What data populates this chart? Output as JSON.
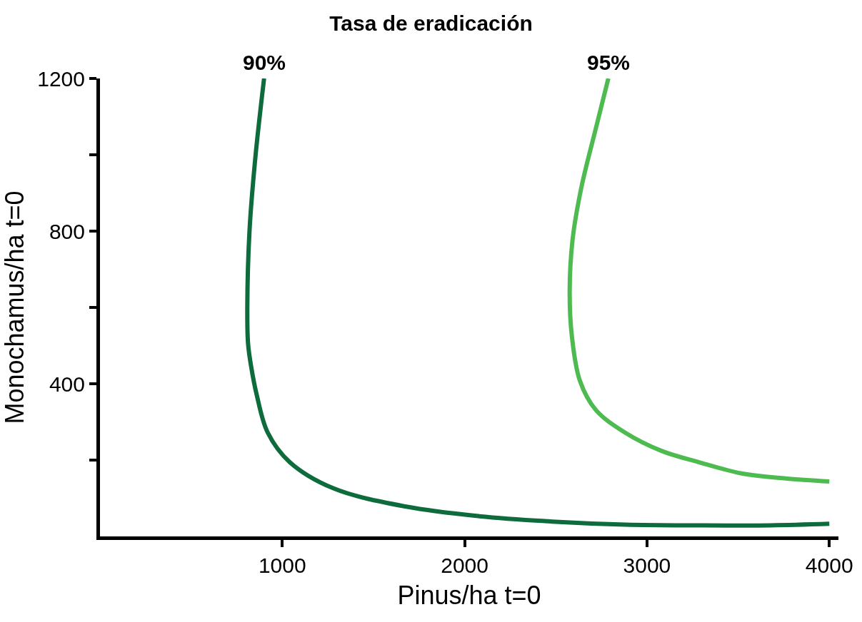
{
  "chart_data": {
    "type": "line",
    "title": "Tasa de eradicación",
    "xlabel": "Pinus/ha t=0",
    "ylabel": "Monochamus/ha t=0",
    "xlim": [
      0,
      4050
    ],
    "xticks": [
      1000,
      2000,
      3000,
      4000
    ],
    "ylim": [
      0,
      1200
    ],
    "yticks": [
      {
        "value": 200,
        "label": null
      },
      400,
      {
        "value": 600,
        "label": null
      },
      800,
      {
        "value": 1000,
        "label": null
      },
      1200
    ],
    "legend": false,
    "marker": "none",
    "line_style": "solid",
    "series": [
      {
        "name": "90%",
        "color": "#0e6b3b",
        "x": [
          900,
          852,
          820,
          808,
          812,
          828,
          860,
          920,
          1040,
          1280,
          1680,
          2080,
          2480,
          2880,
          3280,
          3680,
          4000
        ],
        "values": [
          1200,
          992,
          800,
          600,
          506,
          448,
          370,
          272,
          195,
          126,
          78,
          53,
          39,
          31,
          29,
          29,
          33
        ]
      },
      {
        "name": "95%",
        "color": "#4dbb4f",
        "x": [
          2788,
          2720,
          2640,
          2592,
          2576,
          2588,
          2632,
          2720,
          2880,
          3080,
          3280,
          3520,
          3760,
          4000
        ],
        "values": [
          1200,
          1070,
          914,
          778,
          642,
          525,
          408,
          331,
          272,
          224,
          195,
          165,
          152,
          144
        ]
      }
    ]
  }
}
